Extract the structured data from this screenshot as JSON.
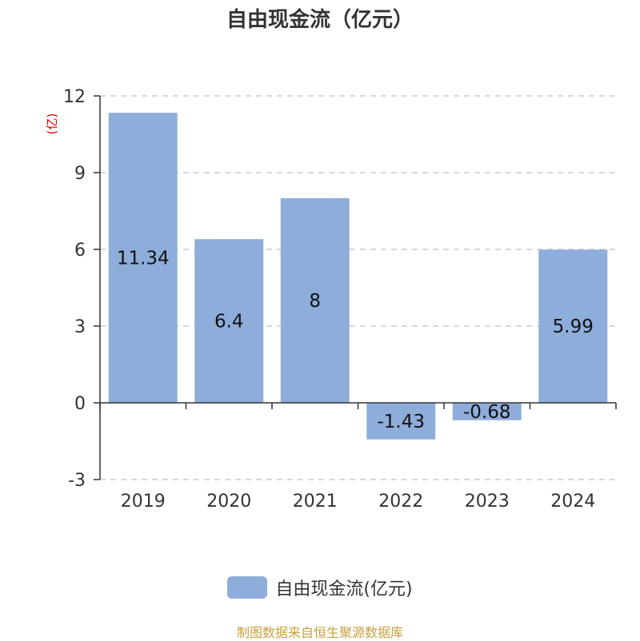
{
  "chart_data": {
    "type": "bar",
    "title": "自由现金流（亿元）",
    "ylabel": "(亿)",
    "categories": [
      "2019",
      "2020",
      "2021",
      "2022",
      "2023",
      "2024"
    ],
    "series": [
      {
        "name": "自由现金流(亿元)",
        "values": [
          11.34,
          6.4,
          8,
          -1.43,
          -0.68,
          5.99
        ],
        "labels": [
          "11.34",
          "6.4",
          "8",
          "-1.43",
          "-0.68",
          "5.99"
        ]
      }
    ],
    "ylim": [
      -3,
      12
    ],
    "yticks": [
      12,
      9,
      6,
      3,
      0,
      -3
    ],
    "grid": true,
    "legend": "bottom-center",
    "colors": {
      "bar": "#8eadda",
      "axis": "#333333",
      "grid": "#cccccc",
      "ylabel": "#e00000",
      "source": "#c8a040"
    }
  },
  "footer": {
    "source": "制图数据来自恒生聚源数据库"
  }
}
